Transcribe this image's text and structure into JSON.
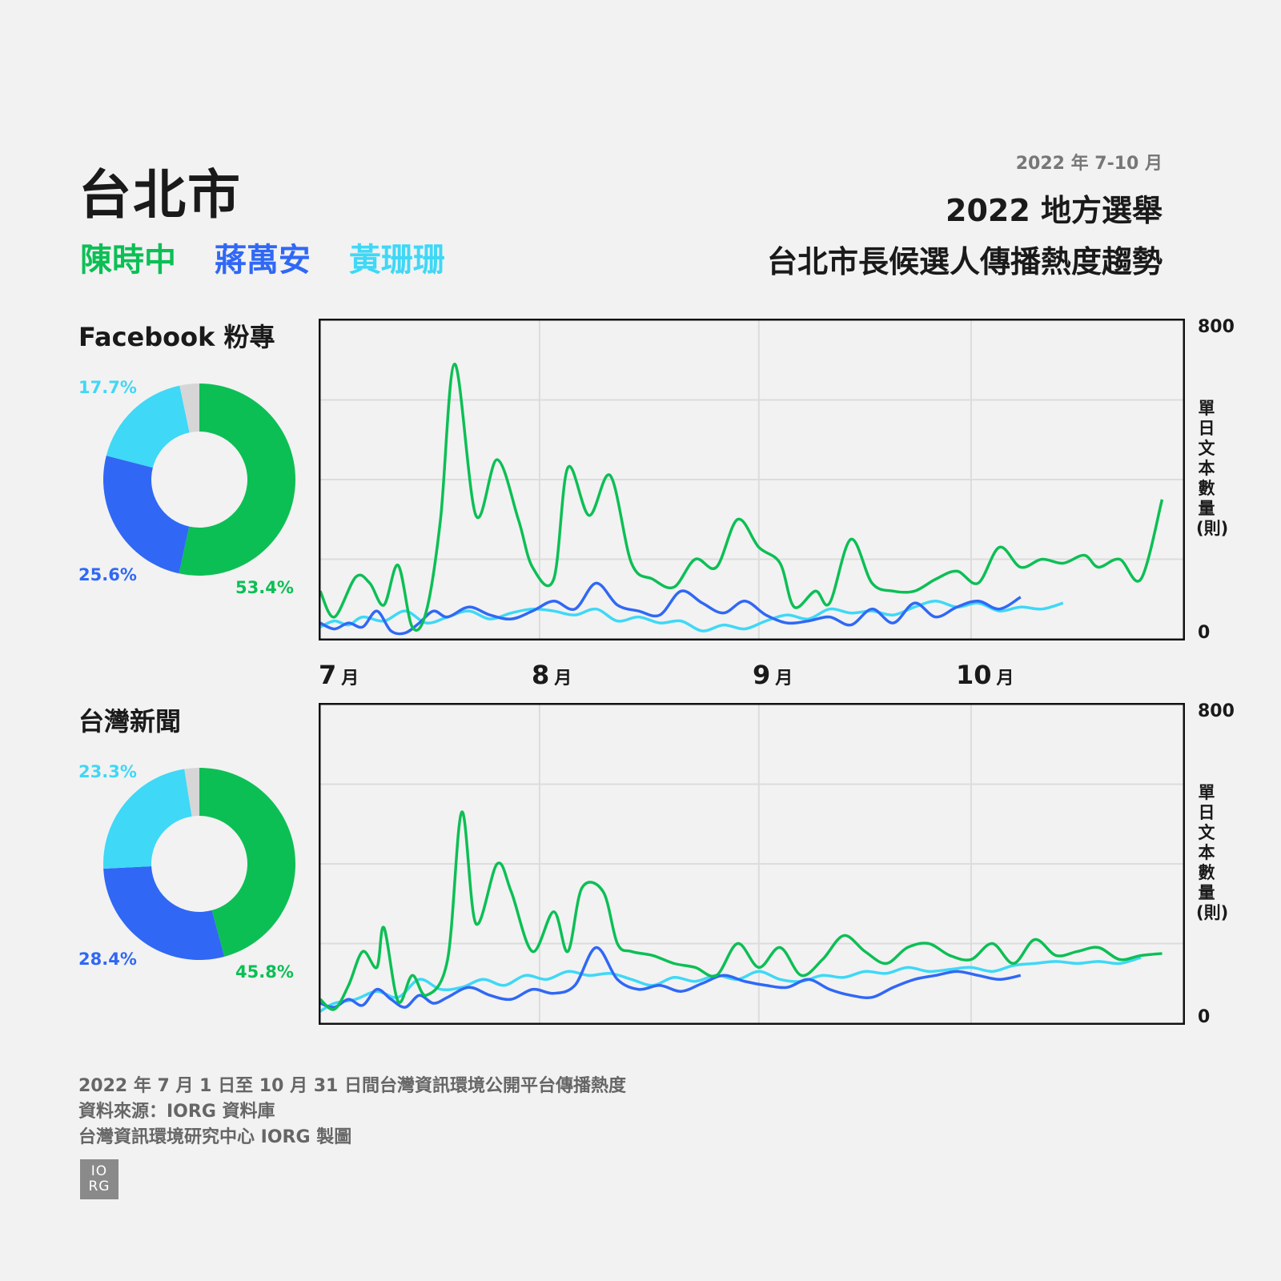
{
  "header": {
    "city": "台北市",
    "candidates": [
      "陳時中",
      "蔣萬安",
      "黃珊珊"
    ],
    "date_range": "2022 年 7-10 月",
    "title_line1": "2022 地方選舉",
    "title_line2": "台北市長候選人傳播熱度趨勢"
  },
  "colors": {
    "chen": "#0cbf55",
    "chiang": "#3068f5",
    "huang": "#3fd8f6",
    "other": "#d6d6d6"
  },
  "footer": {
    "line1": "2022 年 7 月 1 日至 10 月 31 日間台灣資訊環境公開平台傳播熱度",
    "line2": "資料來源：IORG 資料庫",
    "line3": "台灣資訊環境研究中心 IORG 製圖",
    "logo_top": "IO",
    "logo_bottom": "RG"
  },
  "chart_data": [
    {
      "type": "pie",
      "title": "Facebook 粉專",
      "labels": [
        "陳時中",
        "蔣萬安",
        "黃珊珊"
      ],
      "values": [
        53.4,
        25.6,
        17.7
      ],
      "value_labels": [
        "53.4%",
        "25.6%",
        "17.7%"
      ],
      "remainder": 3.3
    },
    {
      "type": "line",
      "title": "Facebook 粉專",
      "ylabel": "單日文本數量(則)",
      "ylim": [
        0,
        800
      ],
      "y_ticks": [
        "800",
        "0"
      ],
      "x_ticks": [
        {
          "month": "7",
          "unit": "月"
        },
        {
          "month": "8",
          "unit": "月"
        },
        {
          "month": "9",
          "unit": "月"
        },
        {
          "month": "10",
          "unit": "月"
        }
      ],
      "x_tick_days": [
        1,
        32,
        63,
        93
      ],
      "x_range_days": [
        1,
        123
      ],
      "series": [
        {
          "name": "陳時中",
          "key": "chen",
          "points": [
            [
              1,
              120
            ],
            [
              3,
              55
            ],
            [
              6,
              155
            ],
            [
              8,
              140
            ],
            [
              10,
              85
            ],
            [
              12,
              185
            ],
            [
              14,
              30
            ],
            [
              16,
              70
            ],
            [
              18,
              300
            ],
            [
              20,
              690
            ],
            [
              23,
              310
            ],
            [
              26,
              450
            ],
            [
              29,
              300
            ],
            [
              31,
              180
            ],
            [
              34,
              150
            ],
            [
              36,
              430
            ],
            [
              39,
              310
            ],
            [
              42,
              410
            ],
            [
              45,
              190
            ],
            [
              48,
              150
            ],
            [
              51,
              130
            ],
            [
              54,
              200
            ],
            [
              57,
              180
            ],
            [
              60,
              300
            ],
            [
              63,
              230
            ],
            [
              66,
              190
            ],
            [
              68,
              80
            ],
            [
              71,
              120
            ],
            [
              73,
              90
            ],
            [
              76,
              250
            ],
            [
              79,
              140
            ],
            [
              82,
              120
            ],
            [
              85,
              120
            ],
            [
              88,
              150
            ],
            [
              91,
              170
            ],
            [
              94,
              140
            ],
            [
              97,
              230
            ],
            [
              100,
              180
            ],
            [
              103,
              200
            ],
            [
              106,
              190
            ],
            [
              109,
              210
            ],
            [
              111,
              180
            ],
            [
              114,
              200
            ],
            [
              117,
              150
            ],
            [
              120,
              350
            ]
          ]
        },
        {
          "name": "蔣萬安",
          "key": "chiang",
          "points": [
            [
              1,
              40
            ],
            [
              3,
              25
            ],
            [
              5,
              40
            ],
            [
              7,
              30
            ],
            [
              9,
              70
            ],
            [
              11,
              20
            ],
            [
              13,
              15
            ],
            [
              15,
              40
            ],
            [
              17,
              70
            ],
            [
              19,
              55
            ],
            [
              22,
              80
            ],
            [
              25,
              60
            ],
            [
              28,
              50
            ],
            [
              31,
              70
            ],
            [
              34,
              95
            ],
            [
              37,
              75
            ],
            [
              40,
              140
            ],
            [
              43,
              85
            ],
            [
              46,
              70
            ],
            [
              49,
              60
            ],
            [
              52,
              120
            ],
            [
              55,
              90
            ],
            [
              58,
              65
            ],
            [
              61,
              95
            ],
            [
              64,
              60
            ],
            [
              67,
              40
            ],
            [
              70,
              45
            ],
            [
              73,
              55
            ],
            [
              76,
              35
            ],
            [
              79,
              75
            ],
            [
              82,
              40
            ],
            [
              85,
              90
            ],
            [
              88,
              55
            ],
            [
              91,
              80
            ],
            [
              94,
              95
            ],
            [
              97,
              75
            ],
            [
              100,
              105
            ]
          ]
        },
        {
          "name": "黃珊珊",
          "key": "huang",
          "points": [
            [
              1,
              30
            ],
            [
              3,
              45
            ],
            [
              5,
              35
            ],
            [
              7,
              55
            ],
            [
              10,
              45
            ],
            [
              13,
              70
            ],
            [
              16,
              40
            ],
            [
              19,
              55
            ],
            [
              22,
              70
            ],
            [
              25,
              50
            ],
            [
              28,
              65
            ],
            [
              31,
              75
            ],
            [
              34,
              70
            ],
            [
              37,
              60
            ],
            [
              40,
              75
            ],
            [
              43,
              45
            ],
            [
              46,
              55
            ],
            [
              49,
              40
            ],
            [
              52,
              45
            ],
            [
              55,
              20
            ],
            [
              58,
              35
            ],
            [
              61,
              25
            ],
            [
              64,
              45
            ],
            [
              67,
              60
            ],
            [
              70,
              50
            ],
            [
              73,
              75
            ],
            [
              76,
              65
            ],
            [
              79,
              70
            ],
            [
              82,
              60
            ],
            [
              85,
              80
            ],
            [
              88,
              95
            ],
            [
              91,
              80
            ],
            [
              94,
              90
            ],
            [
              97,
              70
            ],
            [
              100,
              80
            ],
            [
              103,
              75
            ],
            [
              106,
              90
            ]
          ]
        }
      ]
    },
    {
      "type": "pie",
      "title": "台灣新聞",
      "labels": [
        "陳時中",
        "蔣萬安",
        "黃珊珊"
      ],
      "values": [
        45.8,
        28.4,
        23.3
      ],
      "value_labels": [
        "45.8%",
        "28.4%",
        "23.3%"
      ],
      "remainder": 2.5
    },
    {
      "type": "line",
      "title": "台灣新聞",
      "ylabel": "單日文本數量(則)",
      "ylim": [
        0,
        800
      ],
      "y_ticks": [
        "800",
        "0"
      ],
      "x_range_days": [
        1,
        123
      ],
      "x_tick_days": [
        1,
        32,
        63,
        93
      ],
      "series": [
        {
          "name": "陳時中",
          "key": "chen",
          "points": [
            [
              1,
              60
            ],
            [
              3,
              35
            ],
            [
              5,
              95
            ],
            [
              7,
              180
            ],
            [
              9,
              140
            ],
            [
              10,
              240
            ],
            [
              12,
              55
            ],
            [
              14,
              120
            ],
            [
              16,
              70
            ],
            [
              19,
              160
            ],
            [
              21,
              530
            ],
            [
              23,
              250
            ],
            [
              26,
              400
            ],
            [
              28,
              330
            ],
            [
              31,
              180
            ],
            [
              34,
              280
            ],
            [
              36,
              180
            ],
            [
              38,
              340
            ],
            [
              41,
              330
            ],
            [
              43,
              200
            ],
            [
              45,
              180
            ],
            [
              48,
              170
            ],
            [
              51,
              150
            ],
            [
              54,
              140
            ],
            [
              57,
              120
            ],
            [
              60,
              200
            ],
            [
              63,
              140
            ],
            [
              66,
              190
            ],
            [
              69,
              120
            ],
            [
              72,
              160
            ],
            [
              75,
              220
            ],
            [
              78,
              180
            ],
            [
              81,
              150
            ],
            [
              84,
              190
            ],
            [
              87,
              200
            ],
            [
              90,
              170
            ],
            [
              93,
              160
            ],
            [
              96,
              200
            ],
            [
              99,
              150
            ],
            [
              102,
              210
            ],
            [
              105,
              170
            ],
            [
              108,
              180
            ],
            [
              111,
              190
            ],
            [
              114,
              160
            ],
            [
              117,
              170
            ],
            [
              120,
              175
            ]
          ]
        },
        {
          "name": "蔣萬安",
          "key": "chiang",
          "points": [
            [
              1,
              50
            ],
            [
              3,
              40
            ],
            [
              5,
              60
            ],
            [
              7,
              45
            ],
            [
              9,
              85
            ],
            [
              11,
              60
            ],
            [
              13,
              40
            ],
            [
              15,
              70
            ],
            [
              17,
              50
            ],
            [
              19,
              65
            ],
            [
              22,
              90
            ],
            [
              25,
              70
            ],
            [
              28,
              60
            ],
            [
              31,
              85
            ],
            [
              34,
              75
            ],
            [
              37,
              95
            ],
            [
              40,
              190
            ],
            [
              43,
              110
            ],
            [
              46,
              85
            ],
            [
              49,
              95
            ],
            [
              52,
              80
            ],
            [
              55,
              100
            ],
            [
              58,
              120
            ],
            [
              61,
              105
            ],
            [
              64,
              95
            ],
            [
              67,
              90
            ],
            [
              70,
              110
            ],
            [
              73,
              85
            ],
            [
              76,
              70
            ],
            [
              79,
              65
            ],
            [
              82,
              90
            ],
            [
              85,
              110
            ],
            [
              88,
              120
            ],
            [
              91,
              130
            ],
            [
              94,
              120
            ],
            [
              97,
              110
            ],
            [
              100,
              120
            ]
          ]
        },
        {
          "name": "黃珊珊",
          "key": "huang",
          "points": [
            [
              1,
              30
            ],
            [
              3,
              50
            ],
            [
              6,
              60
            ],
            [
              9,
              80
            ],
            [
              12,
              65
            ],
            [
              15,
              110
            ],
            [
              18,
              85
            ],
            [
              21,
              90
            ],
            [
              24,
              110
            ],
            [
              27,
              95
            ],
            [
              30,
              120
            ],
            [
              33,
              110
            ],
            [
              36,
              130
            ],
            [
              39,
              120
            ],
            [
              42,
              125
            ],
            [
              45,
              110
            ],
            [
              48,
              95
            ],
            [
              51,
              115
            ],
            [
              54,
              105
            ],
            [
              57,
              120
            ],
            [
              60,
              110
            ],
            [
              63,
              130
            ],
            [
              66,
              110
            ],
            [
              69,
              105
            ],
            [
              72,
              120
            ],
            [
              75,
              115
            ],
            [
              78,
              130
            ],
            [
              81,
              125
            ],
            [
              84,
              140
            ],
            [
              87,
              130
            ],
            [
              90,
              135
            ],
            [
              93,
              140
            ],
            [
              96,
              130
            ],
            [
              99,
              145
            ],
            [
              102,
              150
            ],
            [
              105,
              155
            ],
            [
              108,
              150
            ],
            [
              111,
              155
            ],
            [
              114,
              150
            ],
            [
              117,
              165
            ]
          ]
        }
      ]
    }
  ]
}
